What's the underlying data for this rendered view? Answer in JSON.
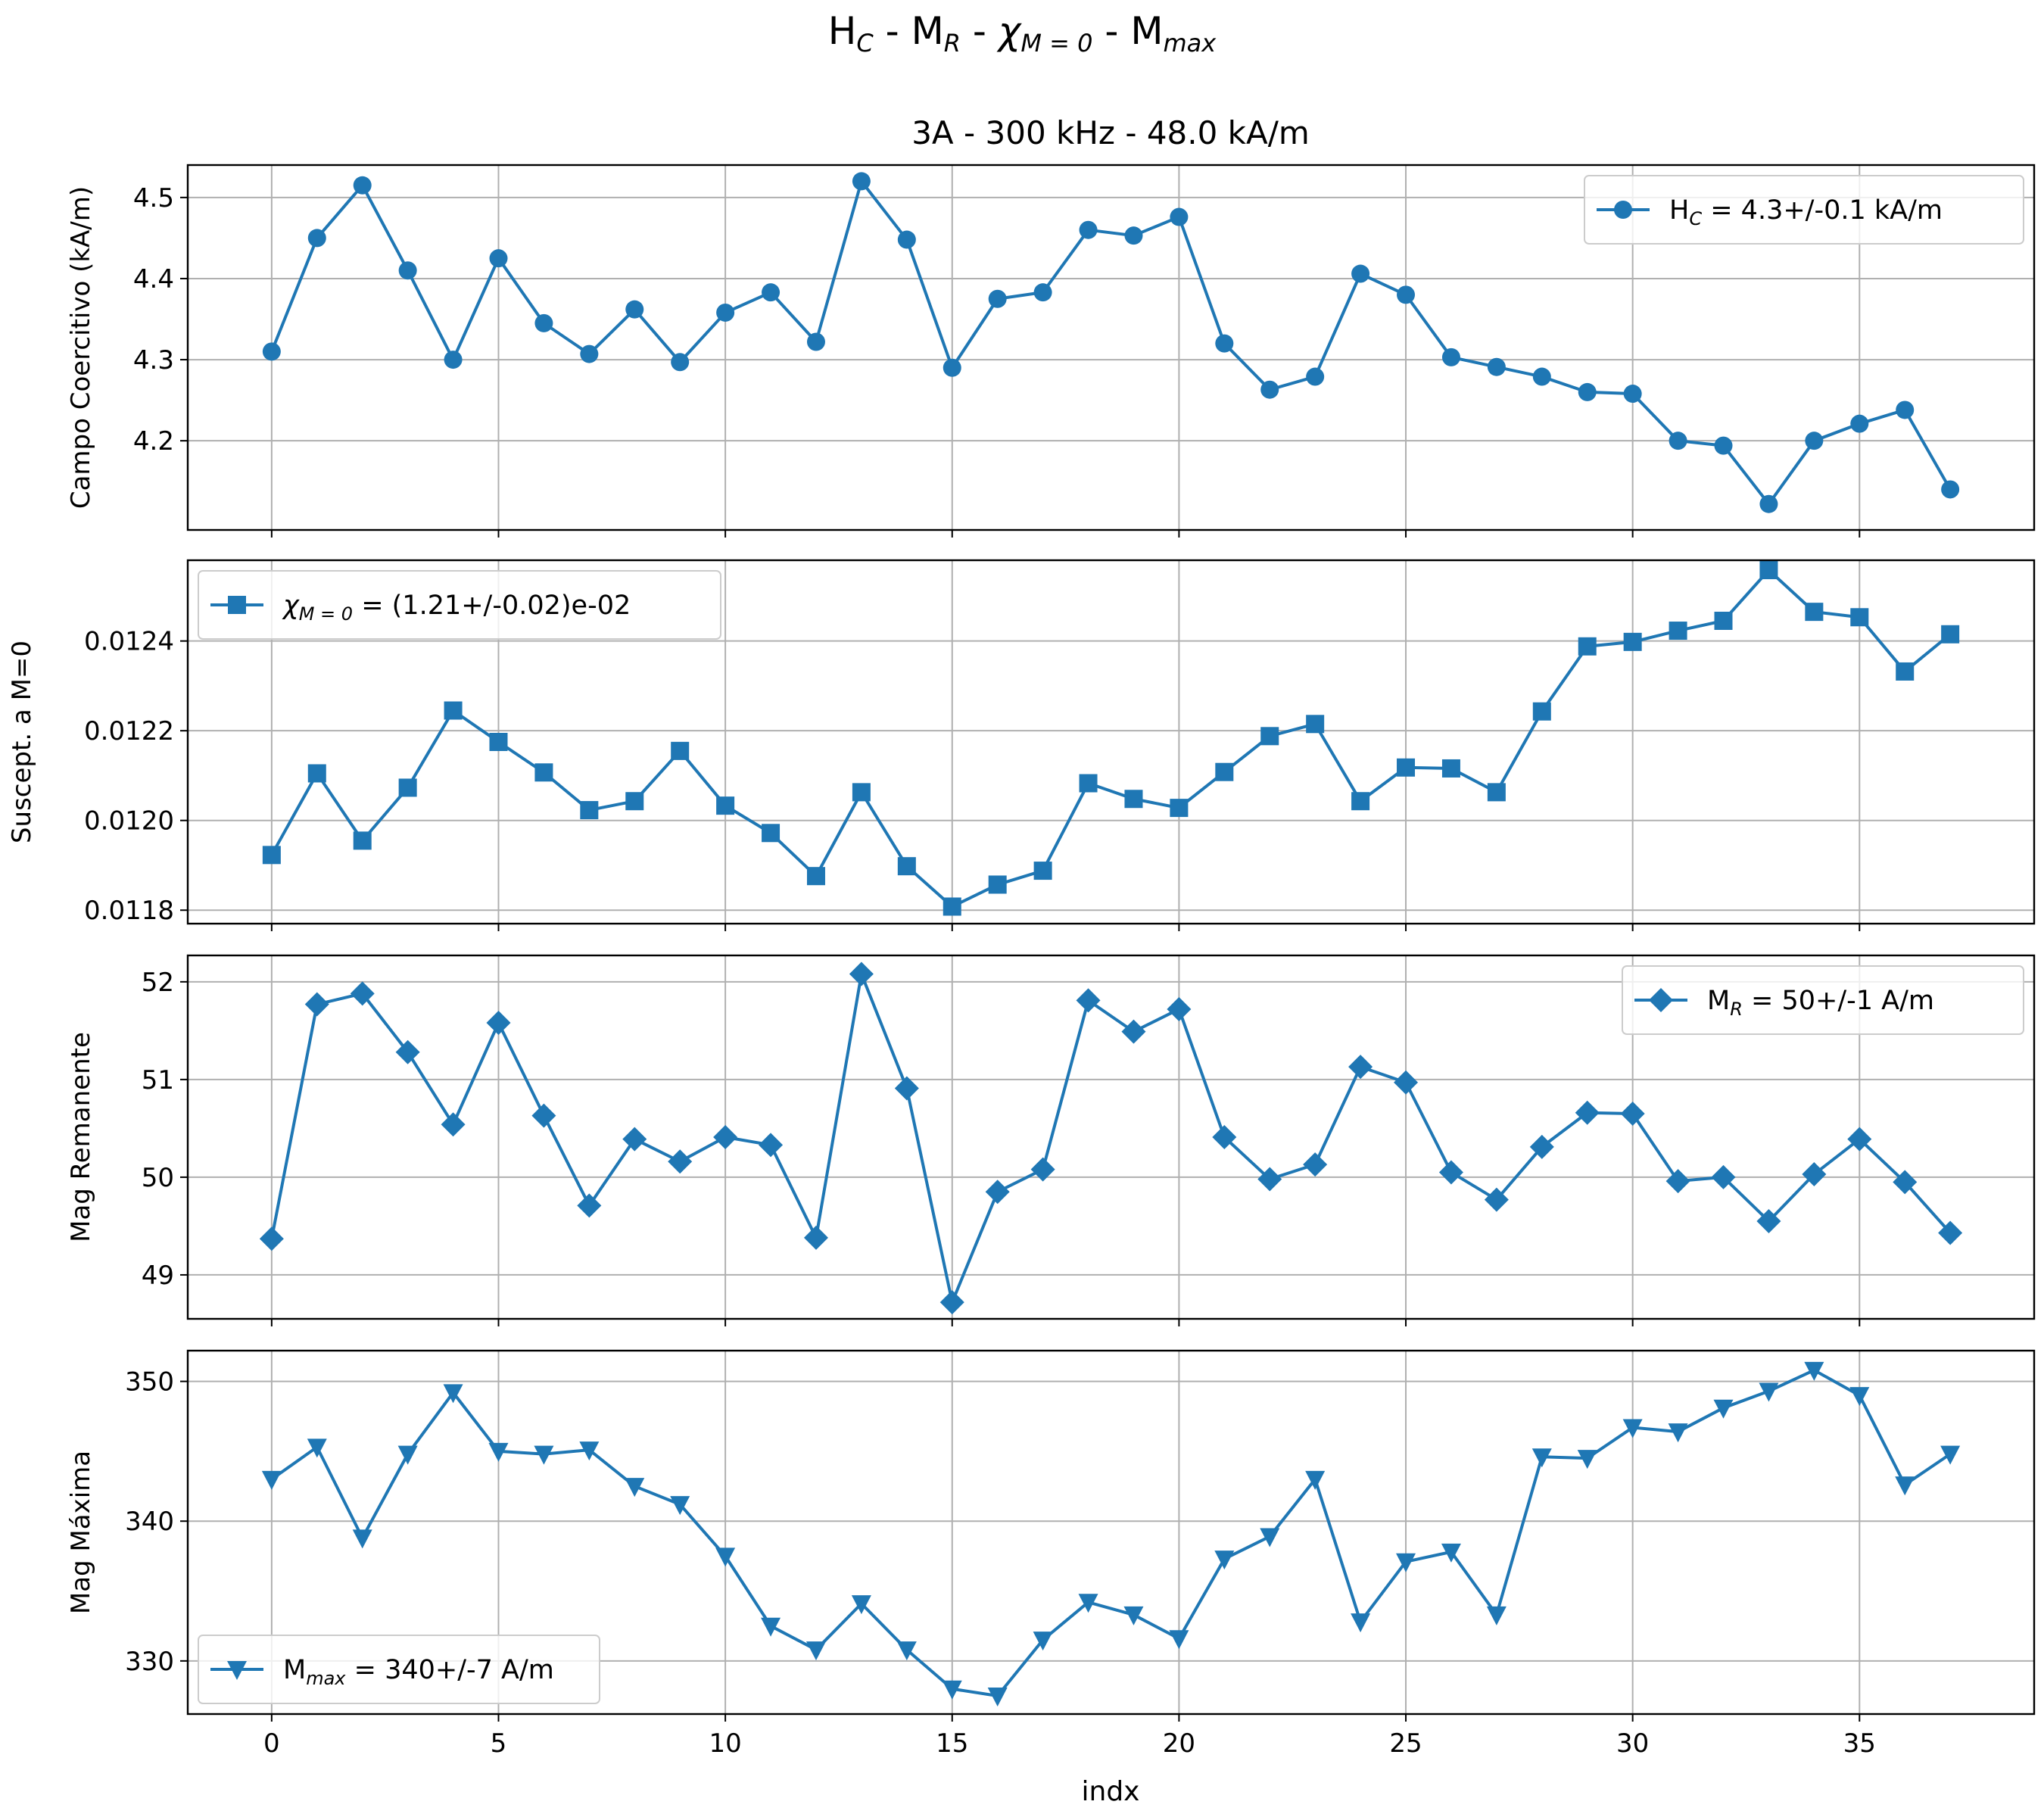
{
  "figure": {
    "title_parts": {
      "h": "H",
      "h_sub": "C",
      "sep1": " - M",
      "mr_sub": "R",
      "sep2": " - ",
      "chi": "χ",
      "chi_sub": "M = 0",
      "sep3": " - M",
      "mmax_sub": "max"
    },
    "subtitle": "3A - 300 kHz - 48.0 kA/m",
    "xlabel": "indx",
    "x_ticks": [
      "0",
      "5",
      "10",
      "15",
      "20",
      "25",
      "30",
      "35"
    ],
    "line_color": "#1f77b4"
  },
  "chart_data": [
    {
      "type": "line",
      "ylabel": "Campo Coercitivo (kA/m)",
      "marker": "circle",
      "legend": {
        "label_main": "H",
        "label_sub": "C",
        "label_rest": " = 4.3+/-0.1 kA/m",
        "placement": "upper right"
      },
      "y_ticks": [
        "4.2",
        "4.3",
        "4.4",
        "4.5"
      ],
      "ylim": [
        4.09,
        4.54
      ],
      "x": [
        0,
        1,
        2,
        3,
        4,
        5,
        6,
        7,
        8,
        9,
        10,
        11,
        12,
        13,
        14,
        15,
        16,
        17,
        18,
        19,
        20,
        21,
        22,
        23,
        24,
        25,
        26,
        27,
        28,
        29,
        30,
        31,
        32,
        33,
        34,
        35,
        36,
        37
      ],
      "values": [
        4.31,
        4.45,
        4.515,
        4.41,
        4.3,
        4.425,
        4.345,
        4.307,
        4.362,
        4.297,
        4.358,
        4.383,
        4.322,
        4.52,
        4.448,
        4.29,
        4.375,
        4.383,
        4.46,
        4.453,
        4.476,
        4.32,
        4.263,
        4.279,
        4.406,
        4.38,
        4.303,
        4.291,
        4.279,
        4.26,
        4.258,
        4.2,
        4.194,
        4.122,
        4.2,
        4.221,
        4.238,
        4.14
      ]
    },
    {
      "type": "line",
      "ylabel": "Suscept. a M=0",
      "marker": "square",
      "legend": {
        "label_main": "χ",
        "label_sub": "M = 0",
        "label_rest": " = (1.21+/-0.02)e-02",
        "placement": "upper left"
      },
      "y_ticks": [
        "0.0118",
        "0.0120",
        "0.0122",
        "0.0124"
      ],
      "ylim": [
        0.01177,
        0.01258
      ],
      "x": [
        0,
        1,
        2,
        3,
        4,
        5,
        6,
        7,
        8,
        9,
        10,
        11,
        12,
        13,
        14,
        15,
        16,
        17,
        18,
        19,
        20,
        21,
        22,
        23,
        24,
        25,
        26,
        27,
        28,
        29,
        30,
        31,
        32,
        33,
        34,
        35,
        36,
        37
      ],
      "values": [
        0.011923,
        0.012105,
        0.011955,
        0.012073,
        0.012245,
        0.012175,
        0.012107,
        0.012023,
        0.012043,
        0.012155,
        0.012033,
        0.011972,
        0.011876,
        0.012063,
        0.011898,
        0.011808,
        0.011857,
        0.011888,
        0.012083,
        0.012048,
        0.012028,
        0.012108,
        0.012188,
        0.012215,
        0.012043,
        0.012118,
        0.012116,
        0.012063,
        0.012243,
        0.012388,
        0.012398,
        0.012423,
        0.012445,
        0.012558,
        0.012465,
        0.012453,
        0.012332,
        0.012415
      ]
    },
    {
      "type": "line",
      "ylabel": "Mag Remanente",
      "marker": "diamond",
      "legend": {
        "label_main": "M",
        "label_sub": "R",
        "label_rest": " = 50+/-1 A/m",
        "placement": "upper right"
      },
      "y_ticks": [
        "49",
        "50",
        "51",
        "52"
      ],
      "ylim": [
        48.55,
        52.27
      ],
      "x": [
        0,
        1,
        2,
        3,
        4,
        5,
        6,
        7,
        8,
        9,
        10,
        11,
        12,
        13,
        14,
        15,
        16,
        17,
        18,
        19,
        20,
        21,
        22,
        23,
        24,
        25,
        26,
        27,
        28,
        29,
        30,
        31,
        32,
        33,
        34,
        35,
        36,
        37
      ],
      "values": [
        49.37,
        51.77,
        51.88,
        51.28,
        50.54,
        51.58,
        50.63,
        49.71,
        50.39,
        50.16,
        50.41,
        50.33,
        49.38,
        52.08,
        50.91,
        48.72,
        49.85,
        50.08,
        51.81,
        51.49,
        51.72,
        50.41,
        49.98,
        50.13,
        51.13,
        50.97,
        50.05,
        49.77,
        50.31,
        50.66,
        50.65,
        49.96,
        50.0,
        49.55,
        50.03,
        50.39,
        49.95,
        49.43
      ]
    },
    {
      "type": "line",
      "ylabel": "Mag Máxima",
      "marker": "triangle-down",
      "legend": {
        "label_main": "M",
        "label_sub": "max",
        "label_rest": " = 340+/-7 A/m",
        "placement": "lower left"
      },
      "y_ticks": [
        "330",
        "340",
        "350"
      ],
      "ylim": [
        326.2,
        352.2
      ],
      "x": [
        0,
        1,
        2,
        3,
        4,
        5,
        6,
        7,
        8,
        9,
        10,
        11,
        12,
        13,
        14,
        15,
        16,
        17,
        18,
        19,
        20,
        21,
        22,
        23,
        24,
        25,
        26,
        27,
        28,
        29,
        30,
        31,
        32,
        33,
        34,
        35,
        36,
        37
      ],
      "values": [
        343.0,
        345.3,
        338.8,
        344.8,
        349.2,
        345.0,
        344.8,
        345.1,
        342.5,
        341.2,
        337.5,
        332.5,
        330.8,
        334.1,
        330.8,
        328.0,
        327.5,
        331.5,
        334.2,
        333.3,
        331.6,
        337.3,
        338.9,
        343.0,
        332.8,
        337.1,
        337.8,
        333.3,
        344.6,
        344.5,
        346.7,
        346.4,
        348.1,
        349.3,
        350.8,
        349.0,
        342.6,
        344.8
      ]
    }
  ]
}
